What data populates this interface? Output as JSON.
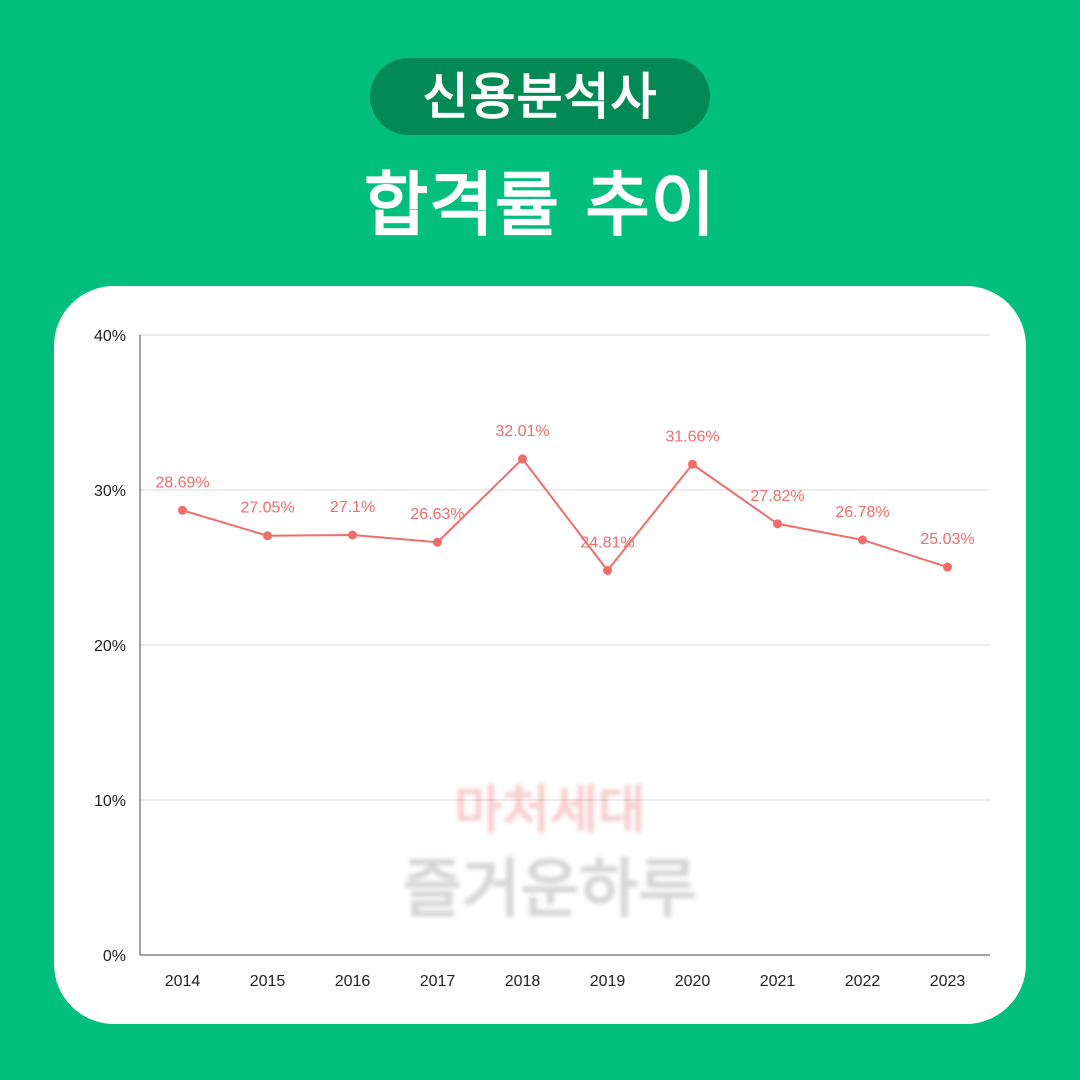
{
  "header": {
    "badge_label": "신용분석사",
    "title": "합격률 추이"
  },
  "watermark": {
    "line1": "마처세대",
    "line2": "즐거운하루"
  },
  "colors": {
    "background": "#02bf7e",
    "badge": "#038a54",
    "card": "#ffffff",
    "series": "#f26c6a",
    "gridline": "#d9d9d9"
  },
  "chart_data": {
    "type": "line",
    "title": "",
    "xlabel": "",
    "ylabel": "",
    "grid": true,
    "legend": "none",
    "ylim": [
      0,
      40
    ],
    "y_ticks": [
      0,
      10,
      20,
      30,
      40
    ],
    "y_tick_labels": [
      "0%",
      "10%",
      "20%",
      "30%",
      "40%"
    ],
    "categories": [
      "2014",
      "2015",
      "2016",
      "2017",
      "2018",
      "2019",
      "2020",
      "2021",
      "2022",
      "2023"
    ],
    "series": [
      {
        "values": [
          28.69,
          27.05,
          27.1,
          26.63,
          32.01,
          24.81,
          31.66,
          27.82,
          26.78,
          25.03
        ],
        "labels": [
          "28.69%",
          "27.05%",
          "27.1%",
          "26.63%",
          "32.01%",
          "24.81%",
          "31.66%",
          "27.82%",
          "26.78%",
          "25.03%"
        ]
      }
    ]
  }
}
